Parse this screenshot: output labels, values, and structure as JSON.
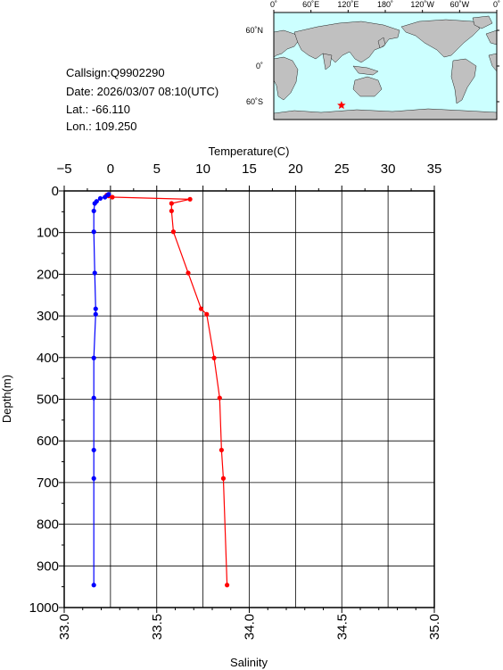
{
  "station": {
    "callsign": "Callsign:Q9902290",
    "date": "Date:  2026/03/07 08:10(UTC)",
    "lat": "Lat.:  -66.110",
    "lon": "Lon.:  109.250"
  },
  "map": {
    "lon_labels": [
      "0˚",
      "60˚E",
      "120˚E",
      "180˚",
      "120˚W",
      "60˚W",
      "0˚"
    ],
    "lat_labels": [
      "60˚N",
      "0˚",
      "60˚S"
    ],
    "marker": {
      "lat": -66.11,
      "lon": 109.25
    },
    "ocean_color": "#ccffff",
    "land_color": "#c0c0c0",
    "marker_color": "#ff0000"
  },
  "chart_data": {
    "type": "line",
    "xlabel_top": "Temperature(C)",
    "xlabel_bottom": "Salinity",
    "ylabel": "Depth(m)",
    "temperature_range": [
      -5,
      35
    ],
    "temperature_ticks": [
      "−5",
      "0",
      "5",
      "10",
      "15",
      "20",
      "25",
      "30",
      "35"
    ],
    "salinity_range": [
      33.0,
      35.0
    ],
    "salinity_ticks": [
      "33.0",
      "33.5",
      "34.0",
      "34.5",
      "35.0"
    ],
    "depth_range": [
      0,
      1000
    ],
    "depth_ticks": [
      "0",
      "100",
      "200",
      "300",
      "400",
      "500",
      "600",
      "700",
      "800",
      "900",
      "1000"
    ],
    "grid": true,
    "series": [
      {
        "color": "#ff0000",
        "axis": "salinity",
        "points": [
          {
            "v": 33.23,
            "d": 10
          },
          {
            "v": 33.24,
            "d": 12
          },
          {
            "v": 33.26,
            "d": 15
          },
          {
            "v": 33.68,
            "d": 20
          },
          {
            "v": 33.58,
            "d": 30
          },
          {
            "v": 33.58,
            "d": 48
          },
          {
            "v": 33.59,
            "d": 98
          },
          {
            "v": 33.67,
            "d": 197
          },
          {
            "v": 33.74,
            "d": 283
          },
          {
            "v": 33.77,
            "d": 296
          },
          {
            "v": 33.81,
            "d": 401
          },
          {
            "v": 33.84,
            "d": 497
          },
          {
            "v": 33.85,
            "d": 622
          },
          {
            "v": 33.86,
            "d": 690
          },
          {
            "v": 33.88,
            "d": 946
          }
        ]
      },
      {
        "color": "#0000ff",
        "axis": "temperature",
        "points": [
          {
            "v": -0.2,
            "d": 8
          },
          {
            "v": -0.3,
            "d": 10
          },
          {
            "v": -0.6,
            "d": 15
          },
          {
            "v": -1.1,
            "d": 18
          },
          {
            "v": -1.5,
            "d": 25
          },
          {
            "v": -1.7,
            "d": 30
          },
          {
            "v": -1.8,
            "d": 48
          },
          {
            "v": -1.8,
            "d": 98
          },
          {
            "v": -1.7,
            "d": 197
          },
          {
            "v": -1.6,
            "d": 283
          },
          {
            "v": -1.6,
            "d": 296
          },
          {
            "v": -1.8,
            "d": 401
          },
          {
            "v": -1.8,
            "d": 497
          },
          {
            "v": -1.8,
            "d": 622
          },
          {
            "v": -1.8,
            "d": 690
          },
          {
            "v": -1.8,
            "d": 946
          }
        ]
      }
    ]
  }
}
